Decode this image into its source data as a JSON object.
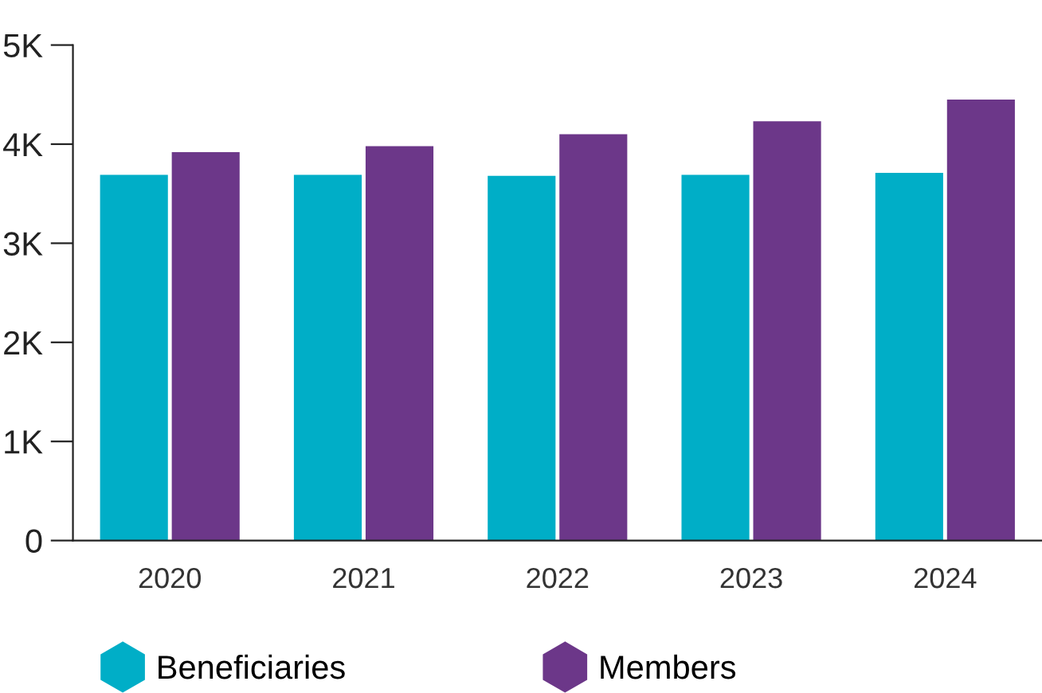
{
  "chart_data": {
    "type": "bar",
    "categories": [
      "2020",
      "2021",
      "2022",
      "2023",
      "2024"
    ],
    "series": [
      {
        "name": "Beneficiaries",
        "color": "#00aec7",
        "values": [
          3690,
          3690,
          3680,
          3690,
          3710
        ]
      },
      {
        "name": "Members",
        "color": "#6c3789",
        "values": [
          3920,
          3980,
          4100,
          4230,
          4450
        ]
      }
    ],
    "ylim": [
      0,
      5000
    ],
    "yticks": [
      {
        "value": 0,
        "label": "0"
      },
      {
        "value": 1000,
        "label": "1K"
      },
      {
        "value": 2000,
        "label": "2K"
      },
      {
        "value": 3000,
        "label": "3K"
      },
      {
        "value": 4000,
        "label": "4K"
      },
      {
        "value": 5000,
        "label": "5K"
      }
    ],
    "grid": false,
    "legend": "bottom"
  }
}
